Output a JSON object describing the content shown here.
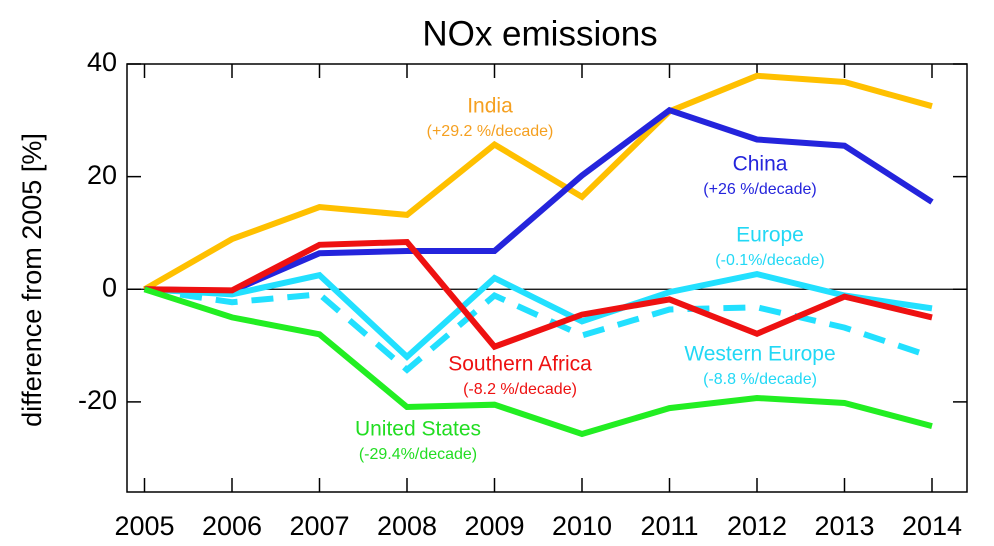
{
  "chart_data": {
    "type": "line",
    "title": "NOx emissions",
    "y_label": "difference from 2005 [%]",
    "x": [
      2005,
      2006,
      2007,
      2008,
      2009,
      2010,
      2011,
      2012,
      2013,
      2014
    ],
    "xlim": [
      2004.8,
      2014.4
    ],
    "xticks": [
      2005,
      2006,
      2007,
      2008,
      2009,
      2010,
      2011,
      2012,
      2013,
      2014
    ],
    "ylim": [
      -36,
      40
    ],
    "yticks": [
      -20,
      0,
      20,
      40
    ],
    "zero_line": true,
    "series": [
      {
        "name": "India",
        "color": "#ffc000",
        "label_color": "#f5a020",
        "rate": "(+29.2 %/decade)",
        "dash": false,
        "values": [
          0,
          8.9,
          14.6,
          13.2,
          25.7,
          16.4,
          31.6,
          37.9,
          36.8,
          32.5
        ]
      },
      {
        "name": "China",
        "color": "#2424dc",
        "label_color": "#2424dc",
        "rate": "(+26 %/decade)",
        "dash": false,
        "values": [
          0,
          -0.3,
          6.4,
          6.8,
          6.8,
          20.2,
          31.8,
          26.6,
          25.5,
          15.5
        ]
      },
      {
        "name": "Europe",
        "color": "#22e0ff",
        "label_color": "#22d8f5",
        "rate": "(-0.1%/decade)",
        "dash": false,
        "values": [
          0,
          -0.9,
          2.5,
          -12.0,
          2.0,
          -5.7,
          -0.5,
          2.7,
          -1.1,
          -3.4
        ]
      },
      {
        "name": "Western Europe",
        "color": "#22e0ff",
        "label_color": "#22d8f5",
        "rate": "(-8.8 %/decade)",
        "dash": true,
        "values": [
          0,
          -2.3,
          -0.9,
          -14.3,
          -1.1,
          -8.2,
          -3.6,
          -3.2,
          -6.8,
          -12.0
        ]
      },
      {
        "name": "Southern Africa",
        "color": "#ee1111",
        "label_color": "#ee1111",
        "rate": "(-8.2 %/decade)",
        "dash": false,
        "values": [
          0,
          -0.2,
          7.9,
          8.4,
          -10.2,
          -4.5,
          -1.8,
          -7.9,
          -1.3,
          -5.0
        ]
      },
      {
        "name": "United States",
        "color": "#22ee22",
        "label_color": "#22dd22",
        "rate": "(-29.4%/decade)",
        "dash": false,
        "values": [
          0,
          -5.0,
          -8.0,
          -20.9,
          -20.5,
          -25.7,
          -21.1,
          -19.3,
          -20.2,
          -24.3
        ]
      }
    ]
  }
}
